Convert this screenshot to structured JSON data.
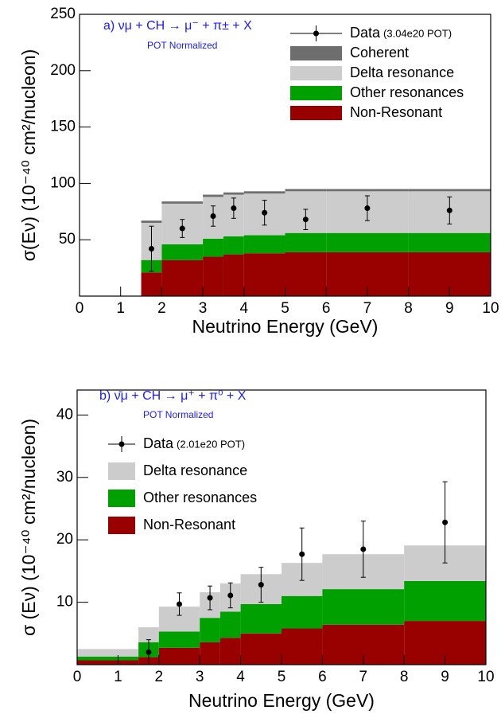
{
  "chart_data": [
    {
      "type": "histogram",
      "stacked": true,
      "annotation": "a)  νμ + CH → μ⁻ + π± + X",
      "annotation_sub": "POT Normalized",
      "xlabel": "Neutrino Energy (GeV)",
      "ylabel": "σ(Eν) (10⁻⁴⁰ cm²/nucleon)",
      "bins": [
        1.5,
        2,
        3,
        3.5,
        4,
        5,
        6,
        8,
        10
      ],
      "series": [
        {
          "name": "Non-Resonant",
          "color": "#990000",
          "values": [
            21,
            32,
            35,
            37,
            38,
            39,
            39,
            39
          ]
        },
        {
          "name": "Other resonances",
          "color": "#00a000",
          "values": [
            11,
            14,
            16,
            16,
            16,
            17,
            17,
            17
          ]
        },
        {
          "name": "Delta resonance",
          "color": "#cccccc",
          "values": [
            33,
            36,
            37,
            37,
            37,
            37,
            37,
            37
          ]
        },
        {
          "name": "Coherent",
          "color": "#6e6e6e",
          "values": [
            2,
            2,
            2,
            2,
            2,
            2,
            2,
            2
          ]
        }
      ],
      "points": {
        "name": "Data",
        "note": "(3.04e20 POT)",
        "x": [
          1.75,
          2.5,
          3.25,
          3.75,
          4.5,
          5.5,
          7,
          9
        ],
        "values": [
          42,
          60,
          71,
          78,
          74,
          68,
          78,
          76
        ],
        "errors": [
          20,
          8,
          9,
          9,
          11,
          9,
          11,
          12
        ]
      },
      "xlim": [
        0,
        10
      ],
      "ylim": [
        0,
        250
      ],
      "xticks": [
        0,
        1,
        2,
        3,
        4,
        5,
        6,
        7,
        8,
        9,
        10
      ],
      "yticks": [
        50,
        100,
        150,
        200,
        250
      ],
      "legend": "upper right"
    },
    {
      "type": "histogram",
      "stacked": true,
      "annotation": "b)  ν̄μ + CH → μ⁺ + π⁰ + X",
      "annotation_sub": "POT Normalized",
      "xlabel": "Neutrino Energy (GeV)",
      "ylabel": "σ (Eν) (10⁻⁴⁰ cm²/nucleon)",
      "bins": [
        0,
        1.5,
        2,
        3,
        3.5,
        4,
        5,
        6,
        8,
        10
      ],
      "series": [
        {
          "name": "Non-Resonant",
          "color": "#990000",
          "values": [
            0.7,
            1.2,
            2.7,
            3.6,
            4.3,
            5.0,
            5.8,
            6.4,
            7.0
          ]
        },
        {
          "name": "Other resonances",
          "color": "#00a000",
          "values": [
            0.6,
            2.4,
            2.6,
            3.9,
            4.2,
            4.7,
            5.2,
            5.7,
            6.4
          ]
        },
        {
          "name": "Delta resonance",
          "color": "#cccccc",
          "values": [
            1.2,
            2.4,
            4.0,
            4.1,
            4.5,
            4.8,
            5.3,
            5.6,
            5.7
          ]
        }
      ],
      "points": {
        "name": "Data",
        "note": "(2.01e20 POT)",
        "x": [
          1.75,
          2.5,
          3.25,
          3.75,
          4.5,
          5.5,
          7,
          9
        ],
        "values": [
          2.0,
          9.7,
          10.7,
          11.1,
          12.8,
          17.7,
          18.5,
          22.8
        ],
        "errors": [
          2.0,
          1.8,
          1.9,
          2.0,
          2.8,
          4.2,
          4.5,
          6.5
        ]
      },
      "xlim": [
        0,
        10
      ],
      "ylim": [
        0,
        44
      ],
      "xticks": [
        0,
        1,
        2,
        3,
        4,
        5,
        6,
        7,
        8,
        9,
        10
      ],
      "yticks": [
        10,
        20,
        30,
        40
      ],
      "legend": "upper left"
    }
  ]
}
